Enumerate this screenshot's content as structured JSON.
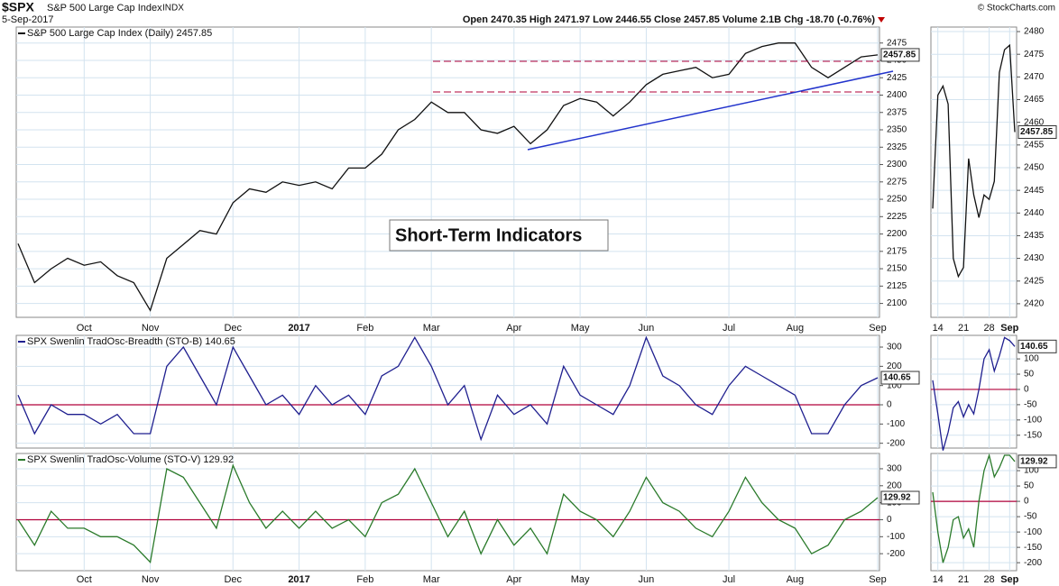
{
  "header": {
    "symbol": "$SPX",
    "name": "S&P 500 Large Cap Index",
    "exchange": "INDX",
    "date": "5-Sep-2017",
    "quote": "Open 2470.35 High 2471.97 Low 2446.55 Close 2457.85 Volume 2.1B Chg -18.70 (-0.76%)",
    "copyright": "© StockCharts.com"
  },
  "chart_data": [
    {
      "type": "line",
      "annotation": "Short-Term Indicators",
      "categories": [
        null,
        null,
        null,
        null,
        "Oct",
        null,
        null,
        null,
        "Nov",
        null,
        null,
        null,
        null,
        "Dec",
        null,
        null,
        null,
        "2017",
        null,
        null,
        null,
        "Feb",
        null,
        null,
        null,
        "Mar",
        null,
        null,
        null,
        null,
        "Apr",
        null,
        null,
        null,
        "May",
        null,
        null,
        null,
        "Jun",
        null,
        null,
        null,
        null,
        "Jul",
        null,
        null,
        null,
        "Aug",
        null,
        null,
        null,
        null,
        "Sep"
      ],
      "series": [
        {
          "name": "S&P 500 Large Cap Index (Daily) 2457.85",
          "color": "#111111",
          "last_label": "2457.85",
          "values": [
            2186,
            2130,
            2150,
            2165,
            2155,
            2160,
            2140,
            2130,
            2090,
            2165,
            2185,
            2205,
            2200,
            2245,
            2265,
            2260,
            2275,
            2270,
            2275,
            2265,
            2295,
            2295,
            2315,
            2350,
            2365,
            2390,
            2375,
            2375,
            2350,
            2345,
            2355,
            2330,
            2350,
            2385,
            2395,
            2390,
            2370,
            2390,
            2415,
            2430,
            2435,
            2440,
            2425,
            2430,
            2460,
            2470,
            2475,
            2475,
            2440,
            2425,
            2440,
            2455,
            2457.85
          ]
        }
      ],
      "ylim": [
        2080,
        2498
      ],
      "yticks": [
        2100,
        2125,
        2150,
        2175,
        2200,
        2225,
        2250,
        2275,
        2300,
        2325,
        2350,
        2375,
        2400,
        2425,
        2450,
        2475
      ],
      "grid": true
    },
    {
      "type": "line",
      "zero_line": true,
      "series": [
        {
          "name": "SPX Swenlin TradOsc-Breadth (STO-B) 140.65",
          "color": "#1f1f8f",
          "last_label": "140.65",
          "values": [
            50,
            -150,
            0,
            -50,
            -50,
            -100,
            -50,
            -150,
            -150,
            200,
            300,
            150,
            0,
            300,
            150,
            0,
            50,
            -50,
            100,
            0,
            50,
            -50,
            150,
            200,
            350,
            200,
            0,
            100,
            -180,
            50,
            -50,
            0,
            -100,
            200,
            50,
            0,
            -50,
            100,
            350,
            150,
            100,
            0,
            -50,
            100,
            200,
            150,
            100,
            50,
            -150,
            -150,
            0,
            100,
            140.65
          ]
        }
      ],
      "ylim": [
        -225,
        361
      ],
      "yticks": [
        -200,
        -100,
        0,
        100,
        200,
        300
      ],
      "grid": true
    },
    {
      "type": "line",
      "zero_line": true,
      "series": [
        {
          "name": "SPX Swenlin TradOsc-Volume (STO-V) 129.92",
          "color": "#2a7a2a",
          "last_label": "129.92",
          "values": [
            0,
            -150,
            50,
            -50,
            -50,
            -100,
            -100,
            -150,
            -250,
            300,
            250,
            100,
            -50,
            320,
            100,
            -50,
            50,
            -50,
            50,
            -50,
            0,
            -100,
            100,
            150,
            300,
            100,
            -100,
            50,
            -200,
            0,
            -150,
            -50,
            -200,
            150,
            50,
            0,
            -100,
            50,
            250,
            100,
            50,
            -50,
            -100,
            50,
            250,
            100,
            0,
            -50,
            -200,
            -150,
            0,
            50,
            129.92
          ]
        }
      ],
      "ylim": [
        -300,
        390
      ],
      "yticks": [
        -200,
        -100,
        0,
        100,
        200,
        300
      ],
      "grid": true
    },
    {
      "type": "line",
      "categories": [
        null,
        "14",
        null,
        null,
        null,
        null,
        "21",
        null,
        null,
        null,
        null,
        "28",
        null,
        null,
        null,
        "Sep",
        null
      ],
      "series": [
        {
          "color": "#111111",
          "last_label": "2457.85",
          "values": [
            2441,
            2466,
            2468,
            2464,
            2430,
            2426,
            2428,
            2452,
            2444,
            2439,
            2444,
            2443,
            2447,
            2471,
            2476,
            2477,
            2457.85
          ]
        }
      ],
      "ylim": [
        2417,
        2481
      ],
      "yticks": [
        2420,
        2425,
        2430,
        2435,
        2440,
        2445,
        2450,
        2455,
        2460,
        2465,
        2470,
        2475,
        2480
      ],
      "grid": true
    },
    {
      "type": "line",
      "zero_line": true,
      "series": [
        {
          "color": "#1f1f8f",
          "last_label": "140.65",
          "values": [
            30,
            -80,
            -200,
            -140,
            -60,
            -40,
            -90,
            -50,
            -80,
            0,
            100,
            130,
            60,
            110,
            170,
            160,
            140.65
          ]
        }
      ],
      "ylim": [
        -192,
        177
      ],
      "yticks": [
        -150,
        -100,
        -50,
        0,
        50,
        100
      ],
      "grid": true
    },
    {
      "type": "line",
      "zero_line": true,
      "series": [
        {
          "color": "#2a7a2a",
          "last_label": "129.92",
          "values": [
            30,
            -100,
            -200,
            -150,
            -60,
            -50,
            -120,
            -90,
            -150,
            0,
            100,
            150,
            80,
            110,
            150,
            150,
            129.92
          ]
        }
      ],
      "ylim": [
        -226,
        156
      ],
      "yticks": [
        -200,
        -150,
        -100,
        -50,
        0,
        50,
        100
      ],
      "grid": true
    }
  ]
}
